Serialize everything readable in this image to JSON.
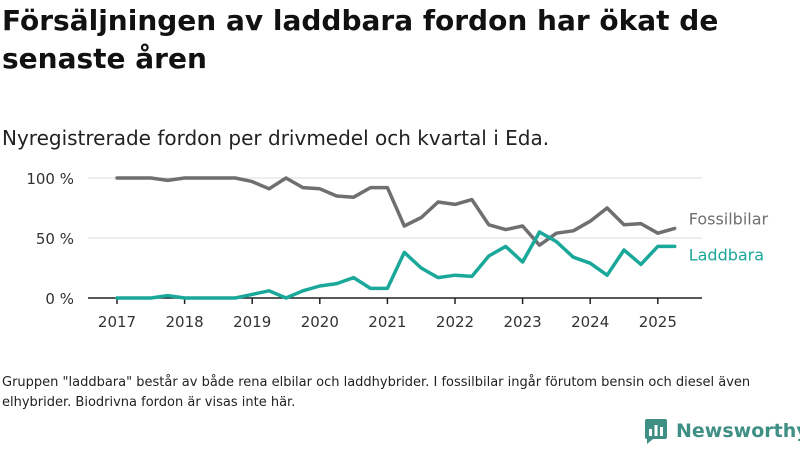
{
  "header": {
    "title": "Försäljningen av laddbara fordon har ökat de senaste åren",
    "subtitle": "Nyregistrerade fordon per drivmedel och kvartal i Eda."
  },
  "footer": {
    "note": "Gruppen \"laddbara\" består av både rena elbilar och laddhybrider. I fossilbilar ingår förutom bensin och diesel även elhybrider. Biodrivna fordon är visas inte här.",
    "brand": "Newsworthy",
    "logo_icon": "newsworthy-bar-chart-logo-icon"
  },
  "chart_data": {
    "type": "line",
    "x": [
      "2017-Q1",
      "2017-Q2",
      "2017-Q3",
      "2017-Q4",
      "2018-Q1",
      "2018-Q2",
      "2018-Q3",
      "2018-Q4",
      "2019-Q1",
      "2019-Q2",
      "2019-Q3",
      "2019-Q4",
      "2020-Q1",
      "2020-Q2",
      "2020-Q3",
      "2020-Q4",
      "2021-Q1",
      "2021-Q2",
      "2021-Q3",
      "2021-Q4",
      "2022-Q1",
      "2022-Q2",
      "2022-Q3",
      "2022-Q4",
      "2023-Q1",
      "2023-Q2",
      "2023-Q3",
      "2023-Q4",
      "2024-Q1",
      "2024-Q2",
      "2024-Q3",
      "2024-Q4",
      "2025-Q1",
      "2025-Q2"
    ],
    "xticks": [
      "2017",
      "2018",
      "2019",
      "2020",
      "2021",
      "2022",
      "2023",
      "2024",
      "2025"
    ],
    "yticks": [
      "0 %",
      "50 %",
      "100 %"
    ],
    "ylim": [
      0,
      100
    ],
    "grid": true,
    "series": [
      {
        "name": "Fossilbilar",
        "color": "#6f6f72",
        "values": [
          100,
          100,
          100,
          98,
          100,
          100,
          100,
          100,
          97,
          91,
          100,
          92,
          91,
          85,
          84,
          92,
          92,
          60,
          67,
          80,
          78,
          82,
          61,
          57,
          60,
          44,
          54,
          56,
          64,
          75,
          61,
          62,
          54,
          58
        ]
      },
      {
        "name": "Laddbara",
        "color": "#1aa89a",
        "values": [
          0,
          0,
          0,
          2,
          0,
          0,
          0,
          0,
          3,
          6,
          0,
          6,
          10,
          12,
          17,
          8,
          8,
          38,
          25,
          17,
          19,
          18,
          35,
          43,
          30,
          55,
          47,
          34,
          29,
          19,
          40,
          28,
          43,
          43
        ]
      }
    ]
  }
}
